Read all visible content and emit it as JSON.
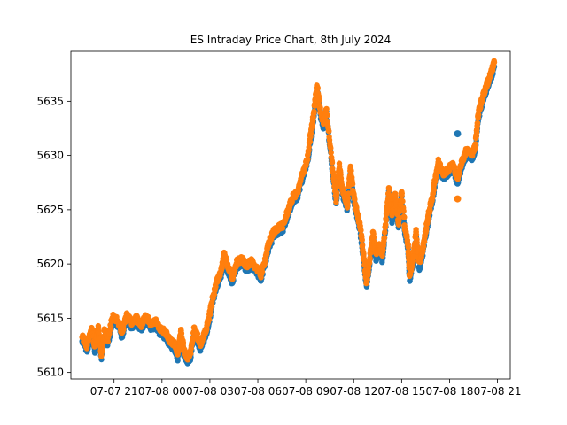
{
  "chart_data": {
    "type": "scatter",
    "title": "ES Intraday Price Chart, 8th July 2024",
    "xlabel": "",
    "ylabel": "",
    "x_ticks": [
      "07-07 21",
      "07-08 00",
      "07-08 03",
      "07-08 06",
      "07-08 09",
      "07-08 12",
      "07-08 15",
      "07-08 18",
      "07-08 21"
    ],
    "x_tick_hours": [
      21,
      24,
      27,
      30,
      33,
      36,
      39,
      42,
      45
    ],
    "xlim_hours": [
      18.3,
      45.8
    ],
    "y_ticks": [
      5610,
      5615,
      5620,
      5625,
      5630,
      5635
    ],
    "ylim": [
      5609.4,
      5639.6
    ],
    "grid": false,
    "colors": {
      "series_a": "#1f77b4",
      "series_b": "#ff7f0e"
    },
    "series": [
      {
        "color_key": "series_a",
        "path": [
          [
            19.0,
            5613.0
          ],
          [
            19.3,
            5612.0
          ],
          [
            19.6,
            5613.6
          ],
          [
            19.8,
            5611.9
          ],
          [
            20.0,
            5613.8
          ],
          [
            20.2,
            5611.3
          ],
          [
            20.4,
            5613.5
          ],
          [
            20.6,
            5612.5
          ],
          [
            20.9,
            5614.7
          ],
          [
            21.2,
            5614.5
          ],
          [
            21.5,
            5613.3
          ],
          [
            21.8,
            5614.9
          ],
          [
            22.1,
            5614.2
          ],
          [
            22.4,
            5614.6
          ],
          [
            22.7,
            5614.0
          ],
          [
            23.0,
            5614.8
          ],
          [
            23.3,
            5614.1
          ],
          [
            23.6,
            5614.3
          ],
          [
            23.9,
            5613.6
          ],
          [
            24.2,
            5613.3
          ],
          [
            24.5,
            5612.6
          ],
          [
            24.8,
            5612.2
          ],
          [
            25.0,
            5611.3
          ],
          [
            25.2,
            5613.5
          ],
          [
            25.4,
            5611.5
          ],
          [
            25.6,
            5611.0
          ],
          [
            25.8,
            5611.4
          ],
          [
            26.0,
            5613.6
          ],
          [
            26.2,
            5613.0
          ],
          [
            26.4,
            5612.2
          ],
          [
            26.7,
            5613.3
          ],
          [
            26.9,
            5614.3
          ],
          [
            27.1,
            5616.0
          ],
          [
            27.4,
            5617.8
          ],
          [
            27.7,
            5619.0
          ],
          [
            27.9,
            5620.5
          ],
          [
            28.1,
            5619.5
          ],
          [
            28.4,
            5618.3
          ],
          [
            28.7,
            5619.8
          ],
          [
            29.0,
            5620.0
          ],
          [
            29.3,
            5619.5
          ],
          [
            29.6,
            5619.8
          ],
          [
            29.9,
            5619.3
          ],
          [
            30.2,
            5618.6
          ],
          [
            30.5,
            5620.3
          ],
          [
            30.7,
            5621.6
          ],
          [
            31.0,
            5622.6
          ],
          [
            31.3,
            5623.0
          ],
          [
            31.6,
            5623.2
          ],
          [
            31.9,
            5624.6
          ],
          [
            32.2,
            5625.8
          ],
          [
            32.5,
            5626.2
          ],
          [
            32.8,
            5628.0
          ],
          [
            33.1,
            5629.2
          ],
          [
            33.3,
            5631.5
          ],
          [
            33.5,
            5633.5
          ],
          [
            33.7,
            5636.2
          ],
          [
            33.9,
            5633.8
          ],
          [
            34.1,
            5632.7
          ],
          [
            34.3,
            5633.8
          ],
          [
            34.6,
            5629.5
          ],
          [
            34.9,
            5625.5
          ],
          [
            35.1,
            5628.7
          ],
          [
            35.3,
            5626.5
          ],
          [
            35.6,
            5625.0
          ],
          [
            35.8,
            5628.6
          ],
          [
            36.0,
            5625.9
          ],
          [
            36.2,
            5624.5
          ],
          [
            36.4,
            5623.1
          ],
          [
            36.6,
            5620.6
          ],
          [
            36.8,
            5617.9
          ],
          [
            37.0,
            5620.0
          ],
          [
            37.2,
            5622.5
          ],
          [
            37.4,
            5620.5
          ],
          [
            37.6,
            5621.3
          ],
          [
            37.8,
            5620.3
          ],
          [
            38.0,
            5623.5
          ],
          [
            38.2,
            5626.5
          ],
          [
            38.4,
            5624.0
          ],
          [
            38.6,
            5626.0
          ],
          [
            38.8,
            5623.3
          ],
          [
            39.0,
            5626.3
          ],
          [
            39.2,
            5623.0
          ],
          [
            39.4,
            5621.5
          ],
          [
            39.5,
            5618.5
          ],
          [
            39.7,
            5620.0
          ],
          [
            39.9,
            5622.5
          ],
          [
            40.1,
            5619.6
          ],
          [
            40.3,
            5620.8
          ],
          [
            40.5,
            5622.6
          ],
          [
            40.7,
            5624.3
          ],
          [
            40.9,
            5625.6
          ],
          [
            41.1,
            5627.5
          ],
          [
            41.3,
            5629.0
          ],
          [
            41.6,
            5628.0
          ],
          [
            41.9,
            5628.3
          ],
          [
            42.2,
            5628.8
          ],
          [
            42.5,
            5627.5
          ],
          [
            42.8,
            5629.2
          ],
          [
            43.1,
            5630.2
          ],
          [
            43.4,
            5629.7
          ],
          [
            43.6,
            5630.4
          ],
          [
            43.8,
            5633.5
          ],
          [
            44.0,
            5634.6
          ],
          [
            44.2,
            5635.6
          ],
          [
            44.4,
            5636.4
          ],
          [
            44.6,
            5637.2
          ],
          [
            44.8,
            5638.2
          ]
        ],
        "outliers": [
          [
            42.5,
            5632.0
          ]
        ]
      },
      {
        "color_key": "series_b",
        "path": [
          [
            19.0,
            5613.4
          ],
          [
            19.3,
            5612.4
          ],
          [
            19.6,
            5614.0
          ],
          [
            19.8,
            5612.3
          ],
          [
            20.0,
            5614.2
          ],
          [
            20.2,
            5611.7
          ],
          [
            20.4,
            5613.9
          ],
          [
            20.6,
            5612.9
          ],
          [
            20.9,
            5615.1
          ],
          [
            21.2,
            5614.9
          ],
          [
            21.5,
            5613.7
          ],
          [
            21.8,
            5615.3
          ],
          [
            22.1,
            5614.6
          ],
          [
            22.4,
            5615.0
          ],
          [
            22.7,
            5614.4
          ],
          [
            23.0,
            5615.2
          ],
          [
            23.3,
            5614.5
          ],
          [
            23.6,
            5614.7
          ],
          [
            23.9,
            5614.0
          ],
          [
            24.2,
            5613.7
          ],
          [
            24.5,
            5613.0
          ],
          [
            24.8,
            5612.6
          ],
          [
            25.0,
            5611.7
          ],
          [
            25.2,
            5613.9
          ],
          [
            25.4,
            5611.9
          ],
          [
            25.6,
            5611.4
          ],
          [
            25.8,
            5611.8
          ],
          [
            26.0,
            5614.0
          ],
          [
            26.2,
            5613.4
          ],
          [
            26.4,
            5612.6
          ],
          [
            26.7,
            5613.7
          ],
          [
            26.9,
            5614.7
          ],
          [
            27.1,
            5616.4
          ],
          [
            27.4,
            5618.2
          ],
          [
            27.7,
            5619.4
          ],
          [
            27.9,
            5620.9
          ],
          [
            28.1,
            5619.9
          ],
          [
            28.4,
            5618.7
          ],
          [
            28.7,
            5620.2
          ],
          [
            29.0,
            5620.4
          ],
          [
            29.3,
            5619.9
          ],
          [
            29.6,
            5620.2
          ],
          [
            29.9,
            5619.7
          ],
          [
            30.2,
            5619.0
          ],
          [
            30.5,
            5620.7
          ],
          [
            30.7,
            5622.0
          ],
          [
            31.0,
            5623.0
          ],
          [
            31.3,
            5623.4
          ],
          [
            31.6,
            5623.6
          ],
          [
            31.9,
            5625.0
          ],
          [
            32.2,
            5626.2
          ],
          [
            32.5,
            5626.6
          ],
          [
            32.8,
            5628.4
          ],
          [
            33.1,
            5629.6
          ],
          [
            33.3,
            5631.9
          ],
          [
            33.5,
            5633.9
          ],
          [
            33.7,
            5636.6
          ],
          [
            33.9,
            5634.2
          ],
          [
            34.1,
            5633.1
          ],
          [
            34.3,
            5634.2
          ],
          [
            34.6,
            5629.9
          ],
          [
            34.9,
            5625.9
          ],
          [
            35.1,
            5629.1
          ],
          [
            35.3,
            5626.9
          ],
          [
            35.6,
            5625.4
          ],
          [
            35.8,
            5629.0
          ],
          [
            36.0,
            5626.3
          ],
          [
            36.2,
            5624.9
          ],
          [
            36.4,
            5623.5
          ],
          [
            36.6,
            5621.0
          ],
          [
            36.8,
            5618.3
          ],
          [
            37.0,
            5620.4
          ],
          [
            37.2,
            5622.9
          ],
          [
            37.4,
            5620.9
          ],
          [
            37.6,
            5621.7
          ],
          [
            37.8,
            5620.7
          ],
          [
            38.0,
            5623.9
          ],
          [
            38.2,
            5626.9
          ],
          [
            38.4,
            5624.4
          ],
          [
            38.6,
            5626.4
          ],
          [
            38.8,
            5623.7
          ],
          [
            39.0,
            5626.7
          ],
          [
            39.2,
            5623.4
          ],
          [
            39.4,
            5621.9
          ],
          [
            39.5,
            5618.9
          ],
          [
            39.7,
            5620.4
          ],
          [
            39.9,
            5622.9
          ],
          [
            40.1,
            5620.0
          ],
          [
            40.3,
            5621.2
          ],
          [
            40.5,
            5623.0
          ],
          [
            40.7,
            5624.7
          ],
          [
            40.9,
            5626.0
          ],
          [
            41.1,
            5627.9
          ],
          [
            41.3,
            5629.4
          ],
          [
            41.6,
            5628.4
          ],
          [
            41.9,
            5628.7
          ],
          [
            42.2,
            5629.2
          ],
          [
            42.5,
            5627.9
          ],
          [
            42.8,
            5629.6
          ],
          [
            43.1,
            5630.6
          ],
          [
            43.4,
            5630.1
          ],
          [
            43.6,
            5630.8
          ],
          [
            43.8,
            5633.9
          ],
          [
            44.0,
            5635.0
          ],
          [
            44.2,
            5636.0
          ],
          [
            44.4,
            5636.8
          ],
          [
            44.6,
            5637.6
          ],
          [
            44.8,
            5638.6
          ]
        ],
        "outliers": [
          [
            42.5,
            5626.0
          ]
        ]
      }
    ]
  }
}
